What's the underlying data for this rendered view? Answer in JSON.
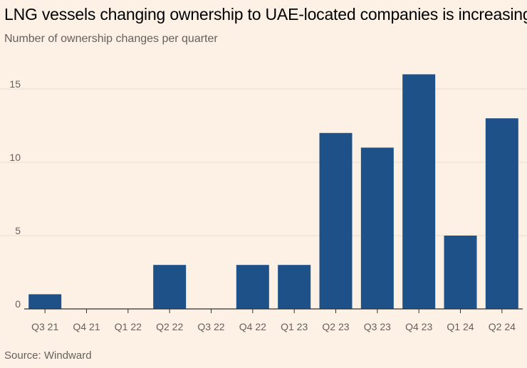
{
  "header": {
    "title": "LNG vessels changing ownership to UAE-located companies is increasing",
    "subtitle": "Number of ownership changes per quarter"
  },
  "footer": {
    "source": "Source: Windward"
  },
  "colors": {
    "background": "#FDF1E6",
    "bar": "#1F5189",
    "grid": "#E9DDD3",
    "axis": "#33302E",
    "text": "#66605C"
  },
  "chart_data": {
    "type": "bar",
    "title": "LNG vessels changing ownership to UAE-located companies is increasing",
    "subtitle": "Number of ownership changes per quarter",
    "xlabel": "",
    "ylabel": "Number of ownership changes per quarter",
    "categories": [
      "Q3 21",
      "Q4 21",
      "Q1 22",
      "Q2 22",
      "Q3 22",
      "Q4 22",
      "Q1 23",
      "Q2 23",
      "Q3 23",
      "Q4 23",
      "Q1 24",
      "Q2 24"
    ],
    "values": [
      1,
      0,
      0,
      3,
      0,
      3,
      3,
      12,
      11,
      16,
      5,
      13
    ],
    "ylim": [
      0,
      16
    ],
    "yticks": [
      0,
      5,
      10,
      15
    ],
    "ytick_labels": [
      "0",
      "5",
      "10",
      "15"
    ],
    "grid": true,
    "legend": "none",
    "source": "Source: Windward"
  }
}
